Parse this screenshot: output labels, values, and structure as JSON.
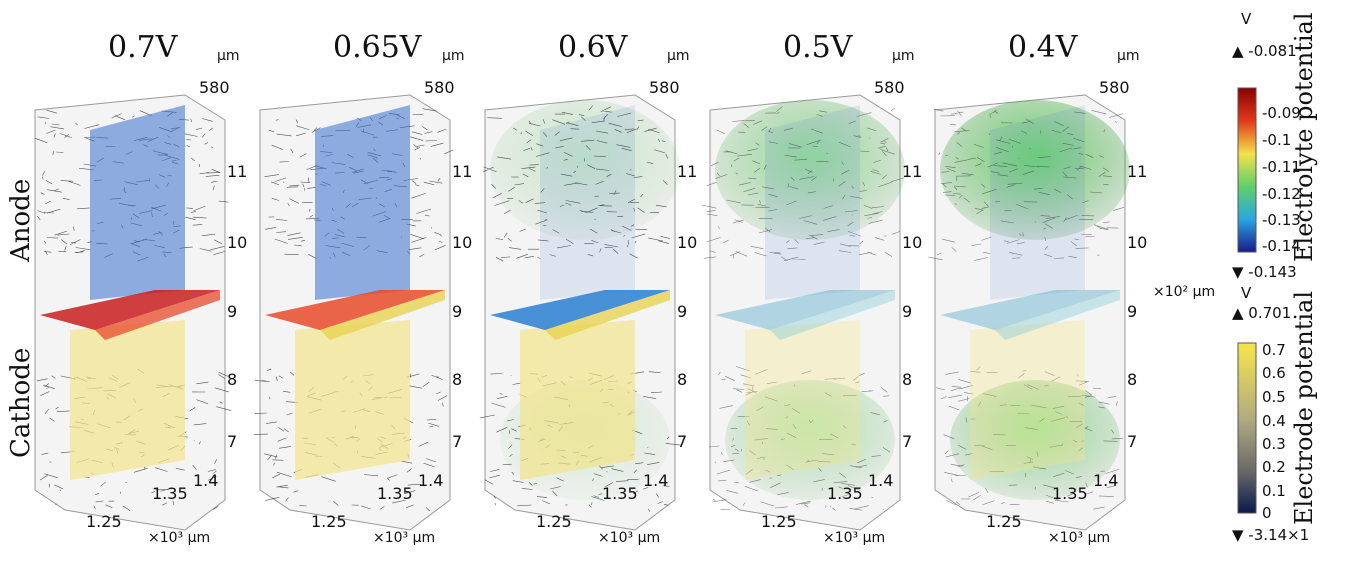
{
  "side_labels": {
    "top": "Anode",
    "bottom": "Cathode"
  },
  "panels": [
    {
      "title": "0.7V",
      "slice": "red"
    },
    {
      "title": "0.65V",
      "slice": "mixed"
    },
    {
      "title": "0.6V",
      "slice": "blue"
    },
    {
      "title": "0.5V",
      "slice": "cyan-dim"
    },
    {
      "title": "0.4V",
      "slice": "cyan-dim"
    }
  ],
  "axis": {
    "unit_top": "μm",
    "z_top": "580",
    "z_ticks": [
      "11",
      "10",
      "9",
      "8",
      "7"
    ],
    "z_unit": "×10² μm",
    "x_ticks": [
      "1.25",
      "1.35",
      "1.4"
    ],
    "x_unit": "×10³ μm"
  },
  "colorbars": {
    "electrolyte": {
      "unit": "V",
      "max_label": "▲ -0.081",
      "min_label": "▼ -0.143",
      "ticks": [
        "-0.09",
        "-0.1",
        "-0.11",
        "-0.12",
        "-0.13",
        "-0.14"
      ],
      "label": "Electrolyte potential"
    },
    "electrode": {
      "unit": "V",
      "max_label": "▲ 0.701",
      "min_label": "▼ -3.14×1",
      "ticks": [
        "0.7",
        "0.6",
        "0.5",
        "0.4",
        "0.3",
        "0.2",
        "0.1",
        "0"
      ],
      "label": "Electrode potential"
    }
  },
  "colors": {
    "fiber": "#1a1a1a",
    "green": "#3fc23f",
    "yellow": "#f2e48a",
    "red": "#d62a1f",
    "blue": "#3a6fd0",
    "cyan": "#5fbfd8"
  }
}
